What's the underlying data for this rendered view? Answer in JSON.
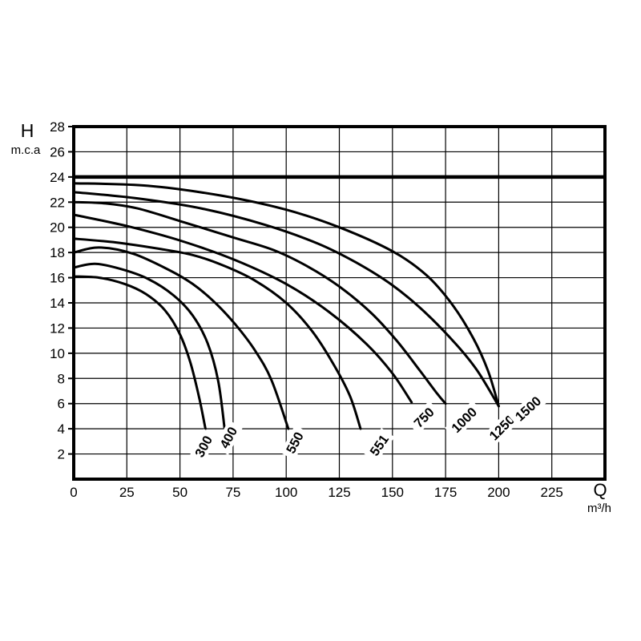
{
  "page": {
    "background": "#ffffff"
  },
  "axes": {
    "y": {
      "title": "H",
      "unit": "m.c.a"
    },
    "x": {
      "title": "Q",
      "unit": "m³/h"
    }
  },
  "chart_data": {
    "type": "line",
    "title": "",
    "xlabel": "Q",
    "x_unit": "m³/h",
    "ylabel": "H",
    "y_unit": "m.c.a",
    "xlim": [
      0,
      250
    ],
    "ylim": [
      0,
      28
    ],
    "grid": {
      "x_step": 25,
      "y_step": 2,
      "color": "#000000",
      "width": 1.2
    },
    "x_tick_labels": [
      0,
      25,
      50,
      75,
      100,
      125,
      150,
      175,
      200,
      225
    ],
    "y_tick_labels": [
      28,
      26,
      24,
      22,
      20,
      18,
      16,
      14,
      12,
      10,
      8,
      6,
      4,
      2
    ],
    "reference_line_y": 24,
    "line_color": "#000000",
    "background": "#ffffff",
    "legend_position": "curve-end-labels",
    "series": [
      {
        "name": "300",
        "points": [
          [
            0,
            16.1
          ],
          [
            12,
            16.0
          ],
          [
            24,
            15.5
          ],
          [
            34,
            14.7
          ],
          [
            43,
            13.4
          ],
          [
            50,
            11.5
          ],
          [
            55,
            9.2
          ],
          [
            59,
            6.5
          ],
          [
            62,
            4.0
          ]
        ],
        "label_at": [
          61.1,
          2.6
        ],
        "label_rotation": -62
      },
      {
        "name": "400",
        "points": [
          [
            0,
            16.8
          ],
          [
            10,
            17.1
          ],
          [
            22,
            16.7
          ],
          [
            35,
            15.9
          ],
          [
            47,
            14.6
          ],
          [
            56,
            13.0
          ],
          [
            63,
            10.8
          ],
          [
            68,
            7.8
          ],
          [
            71,
            4.0
          ]
        ],
        "label_at": [
          72.8,
          3.3
        ],
        "label_rotation": -62
      },
      {
        "name": "550",
        "points": [
          [
            0,
            18.0
          ],
          [
            12,
            18.4
          ],
          [
            28,
            17.9
          ],
          [
            45,
            16.6
          ],
          [
            56,
            15.5
          ],
          [
            66,
            14.1
          ],
          [
            76,
            12.3
          ],
          [
            85,
            10.3
          ],
          [
            93,
            7.9
          ],
          [
            101,
            4.0
          ]
        ],
        "label_at": [
          104.0,
          2.9
        ],
        "label_rotation": -62
      },
      {
        "name": "551",
        "points": [
          [
            0,
            19.1
          ],
          [
            20,
            18.8
          ],
          [
            40,
            18.3
          ],
          [
            56,
            17.8
          ],
          [
            70,
            17.0
          ],
          [
            85,
            15.8
          ],
          [
            100,
            14.0
          ],
          [
            112,
            11.8
          ],
          [
            122,
            9.2
          ],
          [
            130,
            6.6
          ],
          [
            135,
            4.0
          ]
        ],
        "label_at": [
          143.7,
          2.7
        ],
        "label_rotation": -55
      },
      {
        "name": "750",
        "points": [
          [
            0,
            21.0
          ],
          [
            25,
            20.1
          ],
          [
            51,
            18.9
          ],
          [
            76,
            17.4
          ],
          [
            100,
            15.5
          ],
          [
            120,
            13.3
          ],
          [
            138,
            10.7
          ],
          [
            150,
            8.4
          ],
          [
            159,
            6.1
          ]
        ],
        "label_at": [
          164.8,
          4.9
        ],
        "label_rotation": -45
      },
      {
        "name": "1000",
        "points": [
          [
            0,
            22.0
          ],
          [
            15,
            21.9
          ],
          [
            30,
            21.5
          ],
          [
            50,
            20.5
          ],
          [
            75,
            19.2
          ],
          [
            94,
            18.2
          ],
          [
            110,
            16.9
          ],
          [
            125,
            15.3
          ],
          [
            140,
            13.2
          ],
          [
            152,
            11.0
          ],
          [
            163,
            8.6
          ],
          [
            171,
            6.8
          ],
          [
            175,
            6.0
          ]
        ],
        "label_at": [
          183.7,
          4.7
        ],
        "label_rotation": -45
      },
      {
        "name": "1250",
        "points": [
          [
            0,
            22.8
          ],
          [
            30,
            22.3
          ],
          [
            60,
            21.5
          ],
          [
            90,
            20.2
          ],
          [
            115,
            18.7
          ],
          [
            133,
            17.2
          ],
          [
            150,
            15.4
          ],
          [
            165,
            13.3
          ],
          [
            180,
            10.7
          ],
          [
            190,
            8.6
          ],
          [
            200,
            5.8
          ]
        ],
        "label_at": [
          201.5,
          4.1
        ],
        "label_rotation": -45
      },
      {
        "name": "1500",
        "points": [
          [
            0,
            23.5
          ],
          [
            35,
            23.3
          ],
          [
            70,
            22.5
          ],
          [
            100,
            21.4
          ],
          [
            125,
            20.0
          ],
          [
            150,
            18.1
          ],
          [
            166,
            16.2
          ],
          [
            178,
            13.9
          ],
          [
            188,
            11.2
          ],
          [
            195,
            8.6
          ],
          [
            200,
            5.8
          ]
        ],
        "label_at": [
          213.8,
          5.6
        ],
        "label_rotation": -42
      }
    ]
  }
}
